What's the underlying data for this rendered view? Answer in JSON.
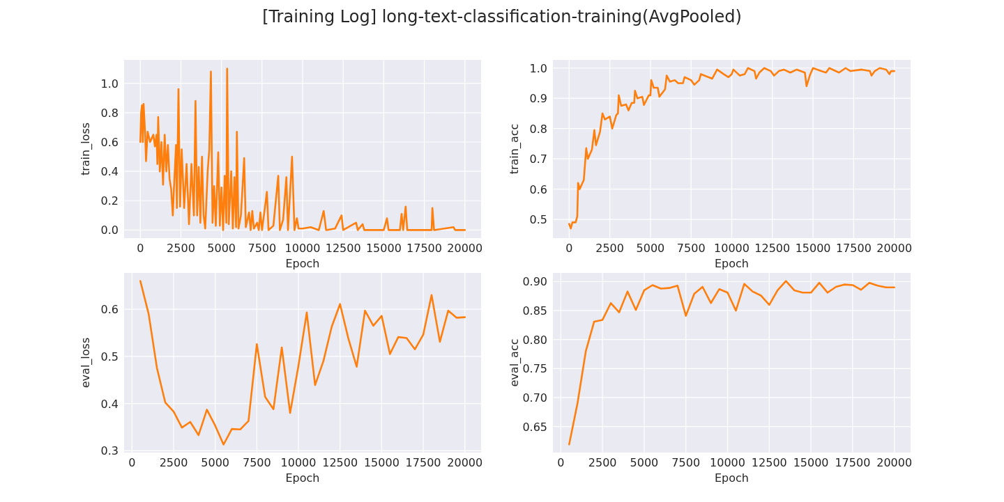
{
  "chart_data": [
    {
      "type": "line",
      "title": "[Training Log] long-text-classification-training(AvgPooled)",
      "xlabel": "Epoch",
      "ylabel": "train_loss",
      "grid": true,
      "xlim": [
        -1000,
        21000
      ],
      "ylim": [
        -0.055,
        1.16
      ],
      "xticks": [
        0,
        2500,
        5000,
        7500,
        10000,
        12500,
        15000,
        17500,
        20000
      ],
      "yticks": [
        {
          "value": 0,
          "label": "0.0"
        },
        0.2,
        0.4,
        0.6,
        0.8,
        {
          "value": 1,
          "label": "1.0"
        }
      ],
      "x": [
        0,
        50,
        100,
        150,
        200,
        300,
        350,
        450,
        600,
        800,
        900,
        1000,
        1050,
        1100,
        1200,
        1300,
        1400,
        1500,
        1600,
        1700,
        1800,
        1900,
        2000,
        2100,
        2200,
        2250,
        2350,
        2450,
        2550,
        2700,
        2850,
        3000,
        3150,
        3300,
        3400,
        3500,
        3600,
        3700,
        3800,
        3900,
        4000,
        4150,
        4250,
        4350,
        4450,
        4550,
        4650,
        4800,
        4900,
        5000,
        5100,
        5200,
        5300,
        5350,
        5450,
        5600,
        5700,
        5800,
        5900,
        5950,
        6050,
        6200,
        6400,
        6500,
        6700,
        6800,
        6900,
        7000,
        7200,
        7300,
        7400,
        7500,
        7800,
        7900,
        8200,
        8500,
        8600,
        8800,
        9000,
        9100,
        9350,
        9500,
        9650,
        9750,
        10000,
        10500,
        11000,
        11300,
        11450,
        12000,
        12400,
        12500,
        13300,
        13400,
        13700,
        13800,
        15000,
        15200,
        15300,
        16000,
        16100,
        16200,
        16350,
        16450,
        17950,
        18000,
        18100,
        19300,
        19400,
        20000
      ],
      "series": [
        {
          "color": "#ff7f0e",
          "values": [
            0.6,
            0.8,
            0.85,
            0.6,
            0.86,
            0.65,
            0.47,
            0.67,
            0.6,
            0.65,
            0.57,
            0.65,
            0.45,
            0.77,
            0.4,
            0.6,
            0.31,
            0.65,
            0.4,
            0.58,
            0.35,
            0.28,
            0.1,
            0.35,
            0.58,
            0.15,
            0.96,
            0.16,
            0.55,
            0.15,
            0.45,
            0.04,
            0.45,
            0.1,
            0.88,
            0.1,
            0.43,
            0.05,
            0.5,
            0.1,
            0.01,
            0.4,
            0.55,
            1.08,
            0.05,
            0.3,
            0.03,
            0.53,
            0.03,
            0.29,
            0.0,
            0.37,
            0.05,
            1.1,
            0.04,
            0.4,
            0.01,
            0.36,
            0.02,
            0.67,
            0.01,
            0.1,
            0.49,
            0.02,
            0.12,
            0.0,
            0.13,
            0.01,
            0.05,
            0.0,
            0.12,
            0.0,
            0.26,
            0.0,
            0.03,
            0.37,
            0.0,
            0.07,
            0.36,
            0.0,
            0.5,
            0.0,
            0.08,
            0.01,
            0.01,
            0.02,
            0.0,
            0.13,
            0.0,
            0.01,
            0.1,
            0.0,
            0.05,
            0.0,
            0.04,
            0.0,
            0.0,
            0.08,
            0.0,
            0.0,
            0.11,
            0.0,
            0.16,
            0.0,
            0.0,
            0.15,
            0.0,
            0.02,
            0.0,
            0.0
          ]
        }
      ]
    },
    {
      "type": "line",
      "xlabel": "Epoch",
      "ylabel": "train_acc",
      "grid": true,
      "xlim": [
        -1000,
        21000
      ],
      "ylim": [
        0.438,
        1.027
      ],
      "xticks": [
        0,
        2500,
        5000,
        7500,
        10000,
        12500,
        15000,
        17500,
        20000
      ],
      "yticks": [
        0.5,
        0.6,
        0.7,
        0.8,
        0.9,
        {
          "value": 1,
          "label": "1.0"
        }
      ],
      "x": [
        0,
        100,
        200,
        400,
        500,
        550,
        650,
        900,
        1050,
        1150,
        1400,
        1550,
        1650,
        1900,
        2050,
        2200,
        2500,
        2650,
        2900,
        3000,
        3050,
        3200,
        3500,
        3650,
        3850,
        4000,
        4050,
        4200,
        4500,
        4600,
        4900,
        5000,
        5050,
        5200,
        5450,
        5550,
        5900,
        6000,
        6200,
        6500,
        6700,
        7000,
        7100,
        7500,
        7700,
        8000,
        8100,
        8800,
        9100,
        9500,
        9800,
        10000,
        10100,
        10500,
        10800,
        11000,
        11400,
        11500,
        11700,
        12000,
        12400,
        12600,
        12900,
        13200,
        13600,
        14000,
        14500,
        14600,
        14800,
        15000,
        15500,
        15800,
        16000,
        16600,
        17000,
        17300,
        18000,
        18500,
        18600,
        18800,
        19100,
        19500,
        19700,
        19800,
        20000
      ],
      "series": [
        {
          "color": "#ff7f0e",
          "values": [
            0.485,
            0.47,
            0.49,
            0.49,
            0.51,
            0.62,
            0.6,
            0.63,
            0.735,
            0.7,
            0.73,
            0.795,
            0.745,
            0.79,
            0.85,
            0.83,
            0.84,
            0.8,
            0.845,
            0.85,
            0.91,
            0.875,
            0.88,
            0.86,
            0.885,
            0.885,
            0.925,
            0.9,
            0.905,
            0.878,
            0.91,
            0.91,
            0.96,
            0.935,
            0.935,
            0.905,
            0.93,
            0.975,
            0.955,
            0.96,
            0.95,
            0.95,
            0.97,
            0.96,
            0.945,
            0.96,
            0.98,
            0.965,
            0.995,
            0.98,
            0.97,
            0.98,
            0.995,
            0.975,
            0.98,
            1.0,
            0.99,
            0.965,
            0.985,
            1.0,
            0.99,
            0.975,
            0.99,
            0.995,
            0.985,
            0.995,
            0.985,
            0.94,
            0.975,
            1.0,
            0.99,
            0.985,
            1.0,
            0.985,
            1.0,
            0.99,
            0.995,
            0.99,
            0.975,
            0.99,
            1.0,
            0.995,
            0.98,
            0.99,
            0.99
          ]
        }
      ]
    },
    {
      "type": "line",
      "xlabel": "Epoch",
      "ylabel": "eval_loss",
      "grid": true,
      "xlim": [
        -475,
        20975
      ],
      "ylim": [
        0.296,
        0.677
      ],
      "xticks": [
        0,
        2500,
        5000,
        7500,
        10000,
        12500,
        15000,
        17500,
        20000
      ],
      "yticks": [
        0.3,
        0.4,
        0.5,
        0.6
      ],
      "x": [
        500,
        1000,
        1500,
        2000,
        2500,
        3000,
        3500,
        4000,
        4500,
        5000,
        5500,
        6000,
        6500,
        7000,
        7500,
        8000,
        8500,
        9000,
        9500,
        10000,
        10500,
        11000,
        11500,
        12000,
        12500,
        13000,
        13500,
        14000,
        14500,
        15000,
        15500,
        16000,
        16500,
        17000,
        17500,
        18000,
        18500,
        19000,
        19500,
        20000
      ],
      "series": [
        {
          "color": "#ff7f0e",
          "values": [
            0.66,
            0.59,
            0.475,
            0.402,
            0.383,
            0.349,
            0.361,
            0.333,
            0.387,
            0.353,
            0.313,
            0.346,
            0.345,
            0.363,
            0.526,
            0.414,
            0.388,
            0.519,
            0.38,
            0.48,
            0.593,
            0.439,
            0.49,
            0.563,
            0.611,
            0.538,
            0.478,
            0.597,
            0.565,
            0.586,
            0.505,
            0.541,
            0.539,
            0.515,
            0.546,
            0.63,
            0.531,
            0.597,
            0.582,
            0.583
          ]
        }
      ]
    },
    {
      "type": "line",
      "xlabel": "Epoch",
      "ylabel": "eval_acc",
      "grid": true,
      "xlim": [
        -475,
        20975
      ],
      "ylim": [
        0.605,
        0.915
      ],
      "xticks": [
        0,
        2500,
        5000,
        7500,
        10000,
        12500,
        15000,
        17500,
        20000
      ],
      "yticks": [
        0.65,
        {
          "value": 0.7,
          "label": "0.70"
        },
        0.75,
        {
          "value": 0.8,
          "label": "0.80"
        },
        0.85,
        {
          "value": 0.9,
          "label": "0.90"
        }
      ],
      "x": [
        500,
        1000,
        1500,
        2000,
        2500,
        3000,
        3500,
        4000,
        4500,
        5000,
        5500,
        6000,
        6500,
        7000,
        7500,
        8000,
        8500,
        9000,
        9500,
        10000,
        10500,
        11000,
        11500,
        12000,
        12500,
        13000,
        13500,
        14000,
        14500,
        15000,
        15500,
        16000,
        16500,
        17000,
        17500,
        18000,
        18500,
        19000,
        19500,
        20000
      ],
      "series": [
        {
          "color": "#ff7f0e",
          "values": [
            0.619,
            0.69,
            0.78,
            0.831,
            0.834,
            0.863,
            0.847,
            0.883,
            0.851,
            0.885,
            0.894,
            0.888,
            0.889,
            0.893,
            0.841,
            0.879,
            0.891,
            0.863,
            0.887,
            0.881,
            0.85,
            0.896,
            0.883,
            0.876,
            0.86,
            0.885,
            0.901,
            0.885,
            0.881,
            0.881,
            0.898,
            0.881,
            0.891,
            0.895,
            0.894,
            0.886,
            0.898,
            0.893,
            0.89,
            0.89
          ]
        }
      ]
    }
  ]
}
